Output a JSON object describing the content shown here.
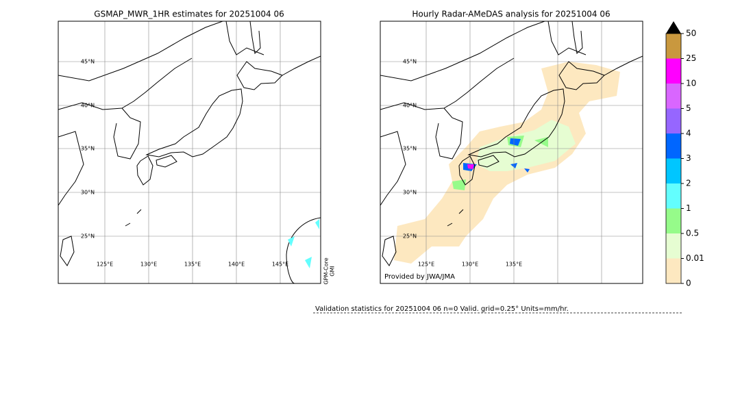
{
  "left_map": {
    "title": "GSMAP_MWR_1HR estimates for 20251004 06",
    "lat_labels": [
      "45°N",
      "40°N",
      "35°N",
      "30°N",
      "25°N"
    ],
    "lon_labels": [
      "125°E",
      "130°E",
      "135°E",
      "140°E",
      "145°E"
    ],
    "side_label": [
      "GPM-Core",
      "GMI"
    ]
  },
  "right_map": {
    "title": "Hourly Radar-AMeDAS analysis for 20251004 06",
    "lat_labels": [
      "45°N",
      "40°N",
      "35°N",
      "30°N",
      "25°N"
    ],
    "lon_labels": [
      "125°E",
      "130°E",
      "135°E"
    ],
    "credit": "Provided by JWA/JMA"
  },
  "colorbar": {
    "ticks": [
      0,
      0.01,
      0.5,
      1,
      2,
      3,
      4,
      5,
      10,
      25,
      50
    ],
    "colors": [
      "#fde8c0",
      "#e6fdd2",
      "#96fb8a",
      "#63fefe",
      "#00c6ff",
      "#0066ff",
      "#9666ff",
      "#d966ff",
      "#ff00ff",
      "#c9983e"
    ],
    "extend_color": "#000000"
  },
  "validation": "Validation statistics for 20251004 06  n=0 Valid. grid=0.25° Units=mm/hr."
}
